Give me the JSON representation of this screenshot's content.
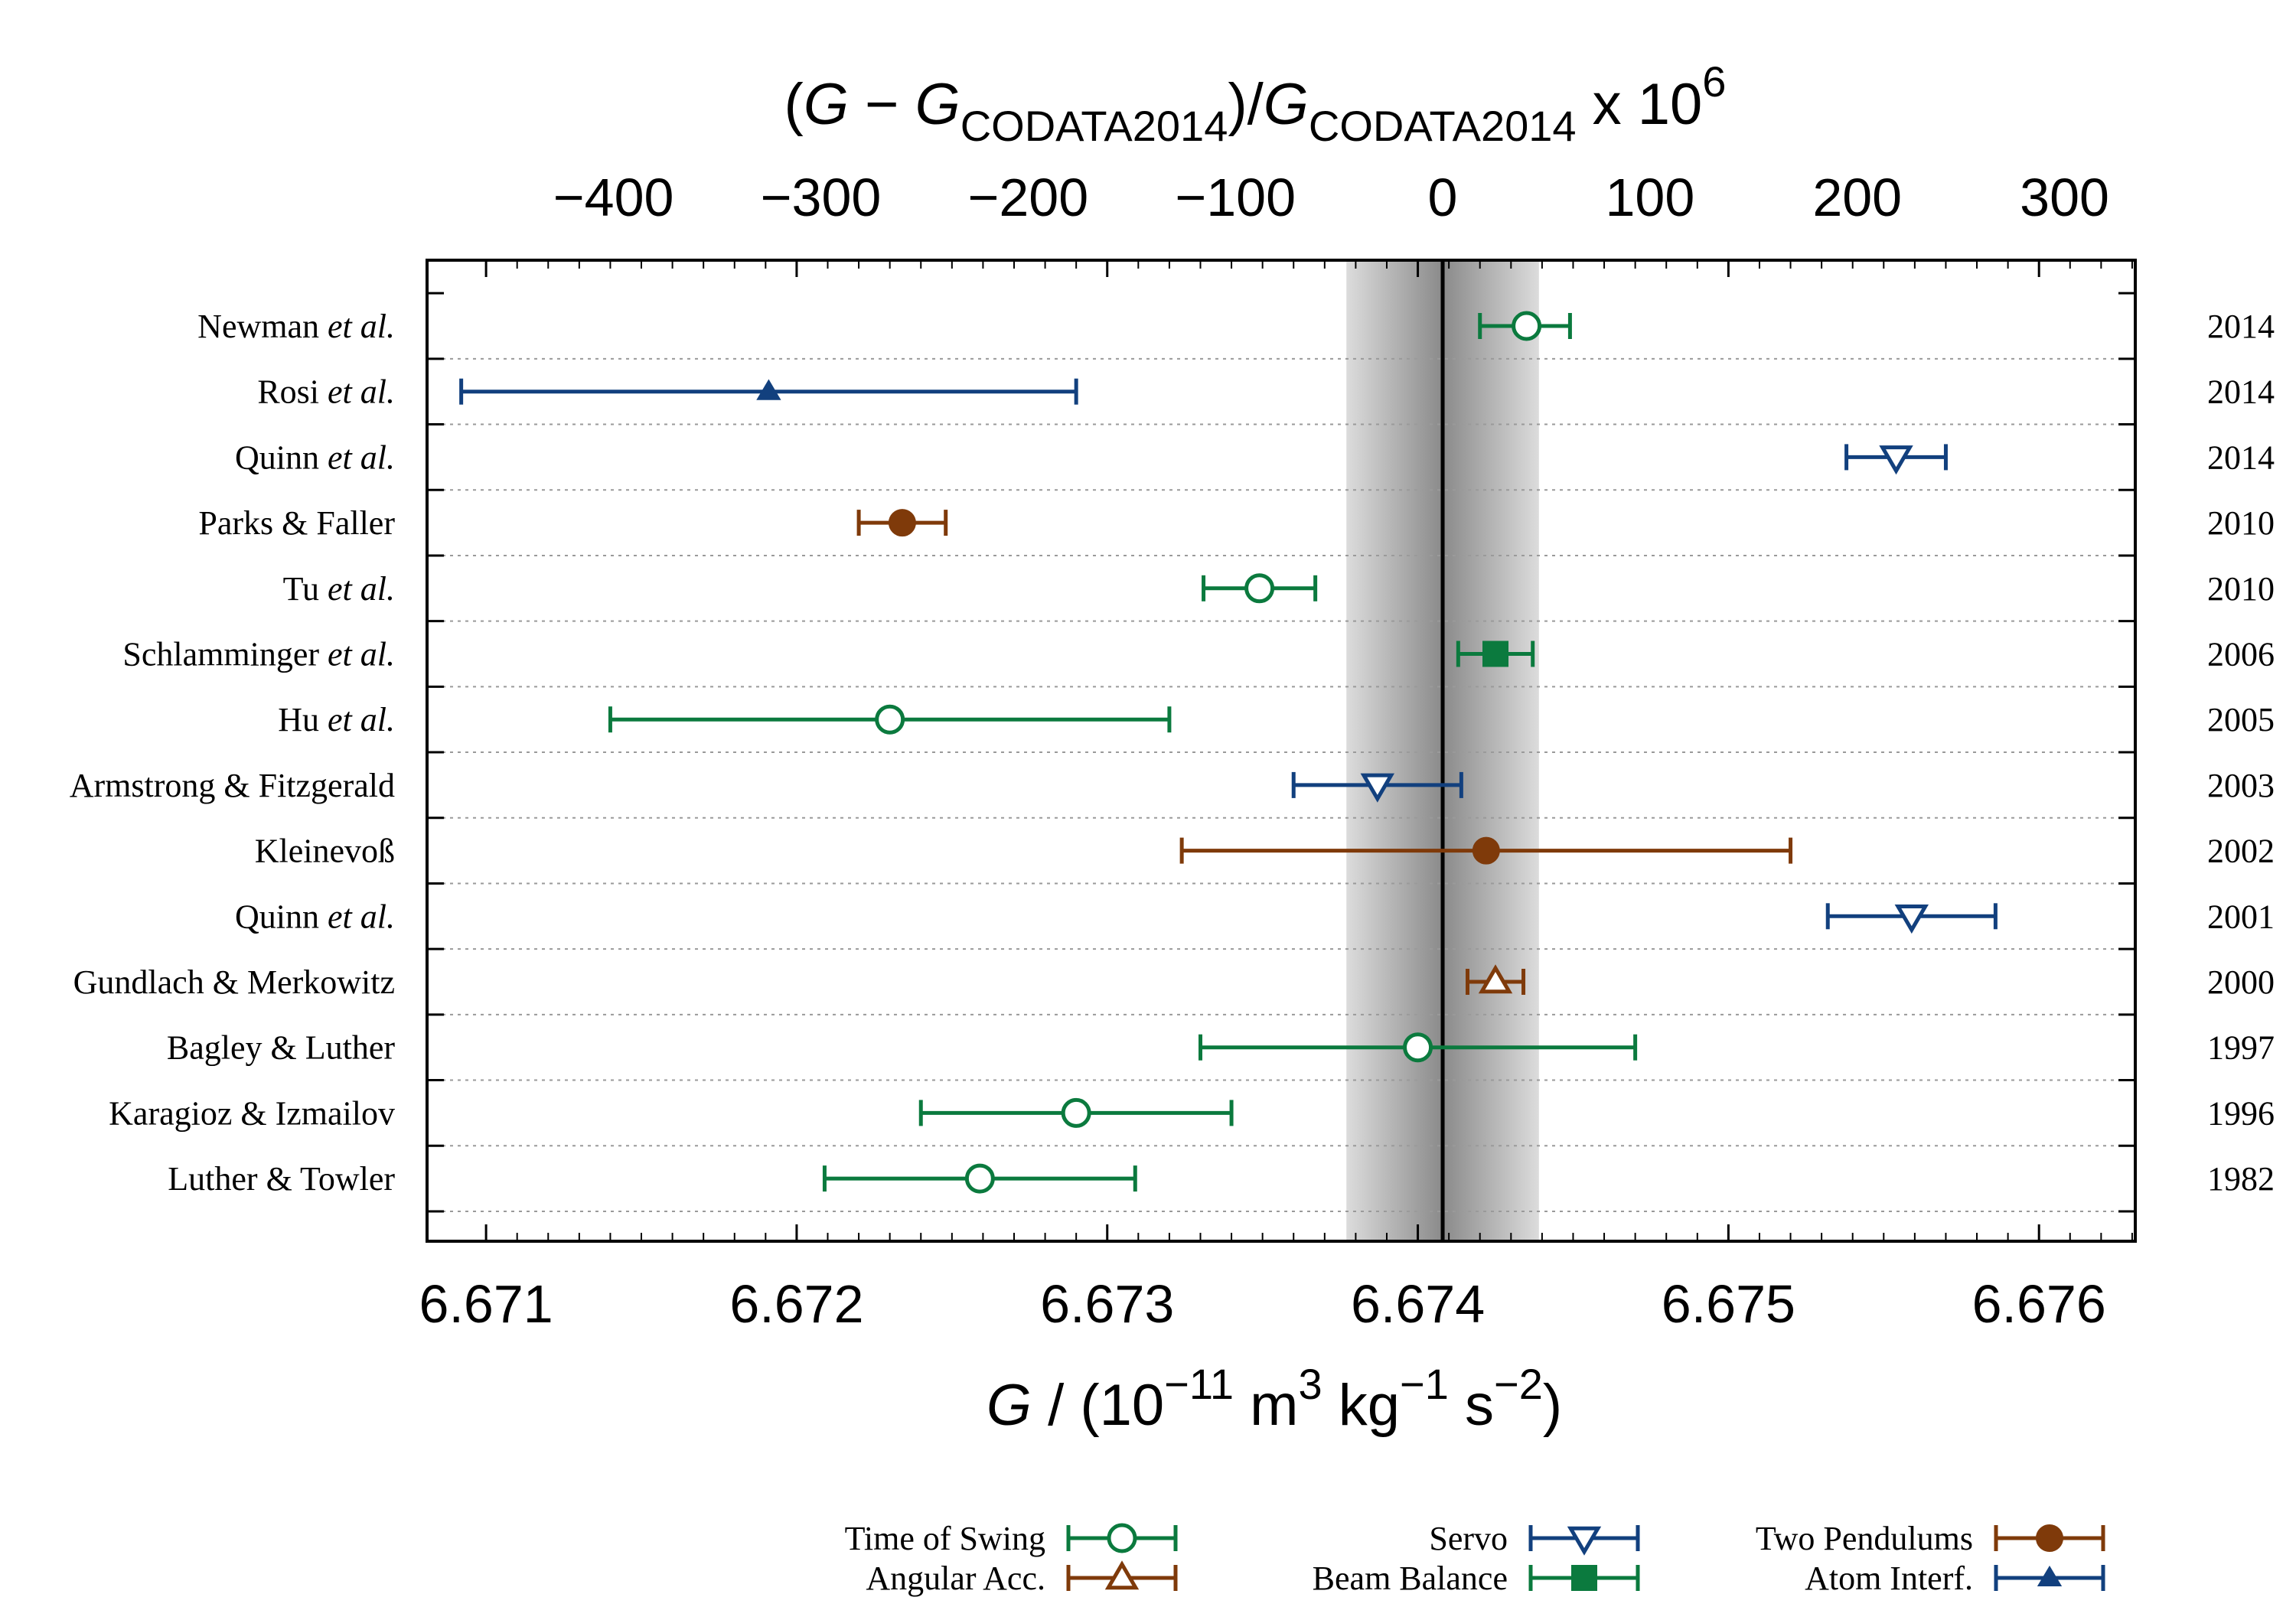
{
  "chart_data": {
    "type": "scatter",
    "xlabel_parts": {
      "var": "G",
      "slash": " / (10",
      "e1": "−11",
      "m": " m",
      "e2": "3",
      "kg": " kg",
      "e3": "−1",
      "s": " s",
      "e4": "−2",
      "close": ")"
    },
    "top_label_parts": {
      "open": "(",
      "g": "G",
      "minus": " − ",
      "g2": "G",
      "sub1": "CODATA2014",
      "close": ")/",
      "g3": "G",
      "sub2": "CODATA2014",
      "times": " x 10",
      "exp": "6"
    },
    "xlim": [
      6.67081,
      6.67631
    ],
    "reference_value": 6.67408,
    "reference_band": [
      6.67377,
      6.67439
    ],
    "bottom_ticks": [
      "6.671",
      "6.672",
      "6.673",
      "6.674",
      "6.675",
      "6.676"
    ],
    "bottom_tick_values": [
      6.671,
      6.672,
      6.673,
      6.674,
      6.675,
      6.676
    ],
    "top_ticks": [
      "−400",
      "−300",
      "−200",
      "−100",
      "0",
      "100",
      "200",
      "300"
    ],
    "top_tick_values": [
      -400,
      -300,
      -200,
      -100,
      0,
      100,
      200,
      300
    ],
    "grid": "horizontal dotted",
    "legend_position": "bottom",
    "series_styles": {
      "Time of Swing": {
        "color": "#0b7a3e",
        "marker": "circle-open"
      },
      "Angular Acc.": {
        "color": "#7f3a0a",
        "marker": "triangle-up-open"
      },
      "Servo": {
        "color": "#12407e",
        "marker": "triangle-down-open"
      },
      "Beam Balance": {
        "color": "#0b7a3e",
        "marker": "square-filled"
      },
      "Two Pendulums": {
        "color": "#7f3a0a",
        "marker": "circle-filled"
      },
      "Atom Interf.": {
        "color": "#12407e",
        "marker": "triangle-up-filled"
      }
    },
    "measurements": [
      {
        "label_main": "Newman ",
        "label_em": "et al.",
        "year": "2014",
        "value": 6.67435,
        "err_low": 6.6742,
        "err_high": 6.67449,
        "method": "Time of Swing"
      },
      {
        "label_main": "Rosi ",
        "label_em": "et al.",
        "year": "2014",
        "value": 6.67191,
        "err_low": 6.67092,
        "err_high": 6.6729,
        "method": "Atom Interf."
      },
      {
        "label_main": "Quinn ",
        "label_em": "et al.",
        "year": "2014",
        "value": 6.67554,
        "err_low": 6.67538,
        "err_high": 6.6757,
        "method": "Servo"
      },
      {
        "label_main": "Parks & Faller",
        "label_em": "",
        "year": "2010",
        "value": 6.67234,
        "err_low": 6.6722,
        "err_high": 6.67248,
        "method": "Two Pendulums"
      },
      {
        "label_main": "Tu ",
        "label_em": "et al.",
        "year": "2010",
        "value": 6.67349,
        "err_low": 6.67331,
        "err_high": 6.67367,
        "method": "Time of Swing"
      },
      {
        "label_main": "Schlamminger ",
        "label_em": "et al.",
        "year": "2006",
        "value": 6.67425,
        "err_low": 6.67413,
        "err_high": 6.67437,
        "method": "Beam Balance"
      },
      {
        "label_main": "Hu  ",
        "label_em": "et al.",
        "year": "2005",
        "value": 6.6723,
        "err_low": 6.6714,
        "err_high": 6.6732,
        "method": "Time of Swing"
      },
      {
        "label_main": "Armstrong & Fitzgerald",
        "label_em": "",
        "year": "2003",
        "value": 6.67387,
        "err_low": 6.6736,
        "err_high": 6.67414,
        "method": "Servo"
      },
      {
        "label_main": "Kleinevoß",
        "label_em": "",
        "year": "2002",
        "value": 6.67422,
        "err_low": 6.67324,
        "err_high": 6.6752,
        "method": "Two Pendulums"
      },
      {
        "label_main": "Quinn ",
        "label_em": "et al.",
        "year": "2001",
        "value": 6.67559,
        "err_low": 6.67532,
        "err_high": 6.67586,
        "method": "Servo"
      },
      {
        "label_main": "Gundlach & Merkowitz",
        "label_em": "",
        "year": "2000",
        "value": 6.67425,
        "err_low": 6.67416,
        "err_high": 6.67434,
        "method": "Angular Acc."
      },
      {
        "label_main": "Bagley & Luther",
        "label_em": "",
        "year": "1997",
        "value": 6.674,
        "err_low": 6.6733,
        "err_high": 6.6747,
        "method": "Time of Swing"
      },
      {
        "label_main": "Karagioz & Izmailov",
        "label_em": "",
        "year": "1996",
        "value": 6.6729,
        "err_low": 6.6724,
        "err_high": 6.6734,
        "method": "Time of Swing"
      },
      {
        "label_main": "Luther & Towler",
        "label_em": "",
        "year": "1982",
        "value": 6.67259,
        "err_low": 6.67209,
        "err_high": 6.67309,
        "method": "Time of Swing"
      }
    ],
    "legend": [
      {
        "label": "Time of Swing",
        "column": 0
      },
      {
        "label": "Angular Acc.",
        "column": 0
      },
      {
        "label": "Servo",
        "column": 1
      },
      {
        "label": "Beam Balance",
        "column": 1
      },
      {
        "label": "Two Pendulums",
        "column": 2
      },
      {
        "label": "Atom Interf.",
        "column": 2
      }
    ]
  }
}
